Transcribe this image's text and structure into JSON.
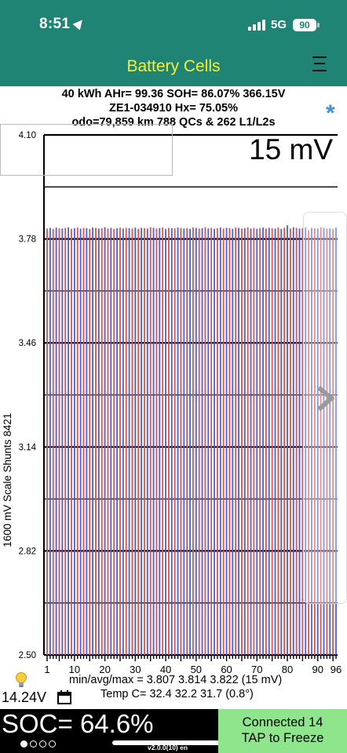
{
  "status_bar": {
    "time": "8:51",
    "network": "5G",
    "battery": "90"
  },
  "app_bar": {
    "title": "Battery Cells"
  },
  "info": {
    "line1": "40 kWh  AHr= 99.36  SOH= 86.07%   366.15V",
    "line2": "ZE1-034910   Hx= 75.05%",
    "line3": "odo=79,859 km 788 QCs & 262 L1/L2s"
  },
  "chart": {
    "spread_label": "15 mV",
    "left_label": "1600 mV Scale   Shunts 8421",
    "y_ticks": [
      "4.10",
      "3.78",
      "3.46",
      "3.14",
      "2.82",
      "2.50"
    ],
    "x_ticks": [
      "1",
      "10",
      "20",
      "30",
      "40",
      "50",
      "60",
      "70",
      "80",
      "90",
      "96"
    ],
    "colors": {
      "odd": "#e05050",
      "even": "#4a5fe0"
    }
  },
  "chart_data": {
    "type": "bar",
    "title": "",
    "xlabel": "",
    "ylabel": "1600 mV Scale   Shunts 8421",
    "ylim": [
      2.5,
      4.1
    ],
    "x_range": [
      1,
      96
    ],
    "cell_count": 96,
    "min": 3.807,
    "avg": 3.814,
    "max": 3.822,
    "spread_mV": 15,
    "values": [
      3.812,
      3.814,
      3.811,
      3.815,
      3.813,
      3.812,
      3.814,
      3.816,
      3.811,
      3.813,
      3.815,
      3.812,
      3.814,
      3.813,
      3.811,
      3.815,
      3.814,
      3.812,
      3.813,
      3.816,
      3.812,
      3.814,
      3.811,
      3.813,
      3.815,
      3.812,
      3.814,
      3.813,
      3.812,
      3.815,
      3.811,
      3.814,
      3.813,
      3.812,
      3.816,
      3.814,
      3.812,
      3.813,
      3.815,
      3.811,
      3.814,
      3.813,
      3.812,
      3.815,
      3.814,
      3.812,
      3.813,
      3.811,
      3.815,
      3.814,
      3.812,
      3.813,
      3.816,
      3.812,
      3.814,
      3.811,
      3.813,
      3.815,
      3.812,
      3.814,
      3.813,
      3.811,
      3.815,
      3.814,
      3.812,
      3.813,
      3.816,
      3.812,
      3.814,
      3.811,
      3.813,
      3.815,
      3.812,
      3.814,
      3.813,
      3.812,
      3.815,
      3.811,
      3.814,
      3.822,
      3.812,
      3.816,
      3.814,
      3.812,
      3.813,
      3.815,
      3.807,
      3.814,
      3.813,
      3.812,
      3.815,
      3.814,
      3.812,
      3.813,
      3.811,
      3.815
    ]
  },
  "stats": {
    "minavgmax": "min/avg/max = 3.807 3.814 3.822  (15 mV)",
    "temp": "Temp C= 32.4  32.2  31.7  (0.8°)",
    "voltage_12v": "14.24V"
  },
  "soc": {
    "text": "SOC= 64.6%"
  },
  "version": "v2.0.0(10) en",
  "connect": {
    "line1": "Connected 14",
    "line2": "TAP to Freeze"
  },
  "icons": {
    "location": "location-arrow-icon",
    "signal": "cellular-signal-icon",
    "battery": "battery-icon",
    "menu": "menu-icon",
    "star": "asterisk-icon",
    "bulb": "lightbulb-icon",
    "calendar": "calendar-icon",
    "chevron": "chevron-right-icon"
  }
}
